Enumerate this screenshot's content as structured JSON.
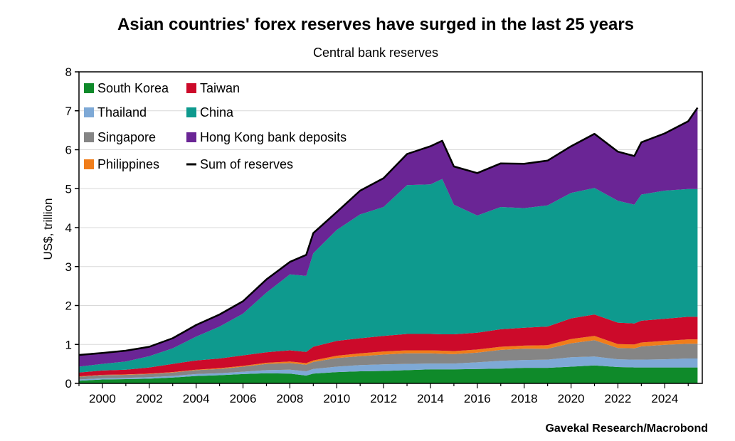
{
  "title": "Asian countries' forex reserves have surged in the last 25 years",
  "subtitle": "Central bank reserves",
  "source": "Gavekal Research/Macrobond",
  "chart_data": {
    "type": "area",
    "ylabel": "US$, trillion",
    "ylim": [
      0,
      8
    ],
    "xlim": [
      1999,
      2025.6
    ],
    "yticks": [
      0,
      1,
      2,
      3,
      4,
      5,
      6,
      7,
      8
    ],
    "xticks": [
      2000,
      2002,
      2004,
      2006,
      2008,
      2010,
      2012,
      2014,
      2016,
      2018,
      2020,
      2022,
      2024
    ],
    "stacked": true,
    "legend_position": "top-left",
    "x": [
      1999,
      2000,
      2001,
      2002,
      2003,
      2004,
      2005,
      2006,
      2007,
      2008,
      2008.7,
      2009,
      2010,
      2011,
      2012,
      2013,
      2014,
      2014.5,
      2015,
      2016,
      2017,
      2018,
      2019,
      2020,
      2021,
      2022,
      2022.7,
      2023,
      2024,
      2025,
      2025.4
    ],
    "series": [
      {
        "name": "South Korea",
        "color": "#0f8a2a",
        "values": [
          0.07,
          0.1,
          0.11,
          0.12,
          0.15,
          0.19,
          0.21,
          0.24,
          0.26,
          0.25,
          0.2,
          0.25,
          0.29,
          0.31,
          0.32,
          0.34,
          0.36,
          0.36,
          0.36,
          0.37,
          0.38,
          0.4,
          0.4,
          0.43,
          0.46,
          0.42,
          0.41,
          0.41,
          0.41,
          0.41,
          0.41
        ]
      },
      {
        "name": "Thailand",
        "color": "#7ea9d6",
        "values": [
          0.03,
          0.03,
          0.03,
          0.04,
          0.04,
          0.05,
          0.05,
          0.06,
          0.08,
          0.1,
          0.11,
          0.12,
          0.14,
          0.16,
          0.17,
          0.16,
          0.15,
          0.15,
          0.15,
          0.17,
          0.2,
          0.2,
          0.21,
          0.24,
          0.23,
          0.2,
          0.2,
          0.2,
          0.21,
          0.23,
          0.23
        ]
      },
      {
        "name": "Singapore",
        "color": "#858585",
        "values": [
          0.07,
          0.08,
          0.08,
          0.08,
          0.09,
          0.1,
          0.11,
          0.13,
          0.16,
          0.17,
          0.17,
          0.18,
          0.22,
          0.23,
          0.25,
          0.27,
          0.26,
          0.25,
          0.24,
          0.25,
          0.28,
          0.29,
          0.28,
          0.36,
          0.42,
          0.29,
          0.29,
          0.34,
          0.37,
          0.38,
          0.38
        ]
      },
      {
        "name": "Philippines",
        "color": "#f07d1a",
        "values": [
          0.01,
          0.01,
          0.01,
          0.01,
          0.01,
          0.01,
          0.02,
          0.02,
          0.03,
          0.04,
          0.04,
          0.04,
          0.06,
          0.07,
          0.08,
          0.08,
          0.08,
          0.08,
          0.08,
          0.08,
          0.08,
          0.08,
          0.09,
          0.11,
          0.11,
          0.1,
          0.1,
          0.1,
          0.1,
          0.11,
          0.11
        ]
      },
      {
        "name": "Taiwan",
        "color": "#cc0a2a",
        "values": [
          0.1,
          0.11,
          0.12,
          0.16,
          0.21,
          0.24,
          0.25,
          0.27,
          0.27,
          0.29,
          0.29,
          0.35,
          0.38,
          0.39,
          0.4,
          0.42,
          0.42,
          0.42,
          0.43,
          0.43,
          0.45,
          0.46,
          0.48,
          0.53,
          0.55,
          0.55,
          0.54,
          0.56,
          0.57,
          0.58,
          0.58
        ]
      },
      {
        "name": "China",
        "color": "#0e9a8e",
        "values": [
          0.15,
          0.17,
          0.21,
          0.29,
          0.4,
          0.61,
          0.82,
          1.07,
          1.53,
          1.95,
          1.95,
          2.4,
          2.85,
          3.18,
          3.31,
          3.82,
          3.84,
          3.99,
          3.33,
          3.01,
          3.14,
          3.07,
          3.11,
          3.22,
          3.25,
          3.13,
          3.05,
          3.24,
          3.29,
          3.28,
          3.28
        ]
      },
      {
        "name": "Hong Kong bank deposits",
        "color": "#6a2595",
        "values": [
          0.3,
          0.28,
          0.28,
          0.24,
          0.26,
          0.3,
          0.31,
          0.32,
          0.34,
          0.32,
          0.54,
          0.52,
          0.46,
          0.61,
          0.74,
          0.8,
          0.98,
          0.98,
          0.98,
          1.09,
          1.12,
          1.14,
          1.15,
          1.2,
          1.39,
          1.26,
          1.25,
          1.34,
          1.47,
          1.74,
          2.09
        ]
      }
    ],
    "sum_series": {
      "name": "Sum of reserves",
      "color": "#000000",
      "values": [
        0.73,
        0.78,
        0.84,
        0.94,
        1.16,
        1.5,
        1.77,
        2.11,
        2.67,
        3.12,
        3.3,
        3.86,
        4.4,
        4.95,
        5.27,
        5.89,
        6.09,
        6.23,
        5.57,
        5.4,
        5.65,
        5.64,
        5.72,
        6.09,
        6.41,
        5.95,
        5.84,
        6.19,
        6.42,
        6.73,
        7.08
      ]
    }
  },
  "legend": [
    {
      "label": "South Korea",
      "color": "#0f8a2a",
      "kind": "box"
    },
    {
      "label": "Taiwan",
      "color": "#cc0a2a",
      "kind": "box"
    },
    {
      "label": "Thailand",
      "color": "#7ea9d6",
      "kind": "box"
    },
    {
      "label": "China",
      "color": "#0e9a8e",
      "kind": "box"
    },
    {
      "label": "Singapore",
      "color": "#858585",
      "kind": "box"
    },
    {
      "label": "Hong Kong bank deposits",
      "color": "#6a2595",
      "kind": "box"
    },
    {
      "label": "Philippines",
      "color": "#f07d1a",
      "kind": "box"
    },
    {
      "label": "Sum of reserves",
      "color": "#000000",
      "kind": "line"
    }
  ]
}
